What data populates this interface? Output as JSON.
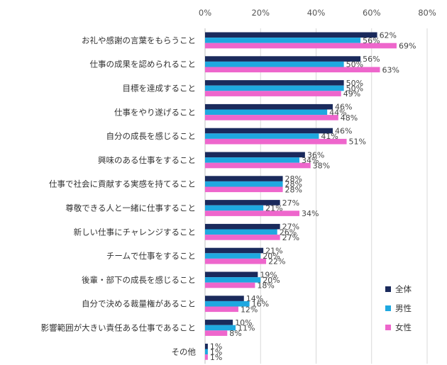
{
  "chart_data": {
    "type": "bar",
    "orientation": "horizontal",
    "categories": [
      "お礼や感謝の言葉をもらうこと",
      "仕事の成果を認められること",
      "目標を達成すること",
      "仕事をやり遂げること",
      "自分の成長を感じること",
      "興味のある仕事をすること",
      "仕事で社会に貢献する実感を持てること",
      "尊敬できる人と一緒に仕事すること",
      "新しい仕事にチャレンジすること",
      "チームで仕事をすること",
      "後輩・部下の成長を感じること",
      "自分で決める裁量権があること",
      "影響範囲が大きい責任ある仕事であること",
      "その他"
    ],
    "series": [
      {
        "name": "全体",
        "color": "#1a2a5c",
        "values": [
          62,
          56,
          50,
          46,
          46,
          36,
          28,
          27,
          27,
          21,
          19,
          14,
          10,
          1
        ]
      },
      {
        "name": "男性",
        "color": "#1fa8e0",
        "values": [
          56,
          50,
          50,
          44,
          41,
          34,
          28,
          21,
          26,
          20,
          20,
          16,
          11,
          1
        ]
      },
      {
        "name": "女性",
        "color": "#ee66cc",
        "values": [
          69,
          63,
          49,
          48,
          51,
          38,
          28,
          34,
          27,
          22,
          18,
          12,
          8,
          1
        ]
      }
    ],
    "x_ticks": [
      "0%",
      "20%",
      "40%",
      "60%",
      "80%"
    ],
    "xlim": [
      0,
      80
    ],
    "value_suffix": "%",
    "grid": true,
    "legend_position": "bottom-right",
    "title": "",
    "xlabel": "",
    "ylabel": ""
  }
}
